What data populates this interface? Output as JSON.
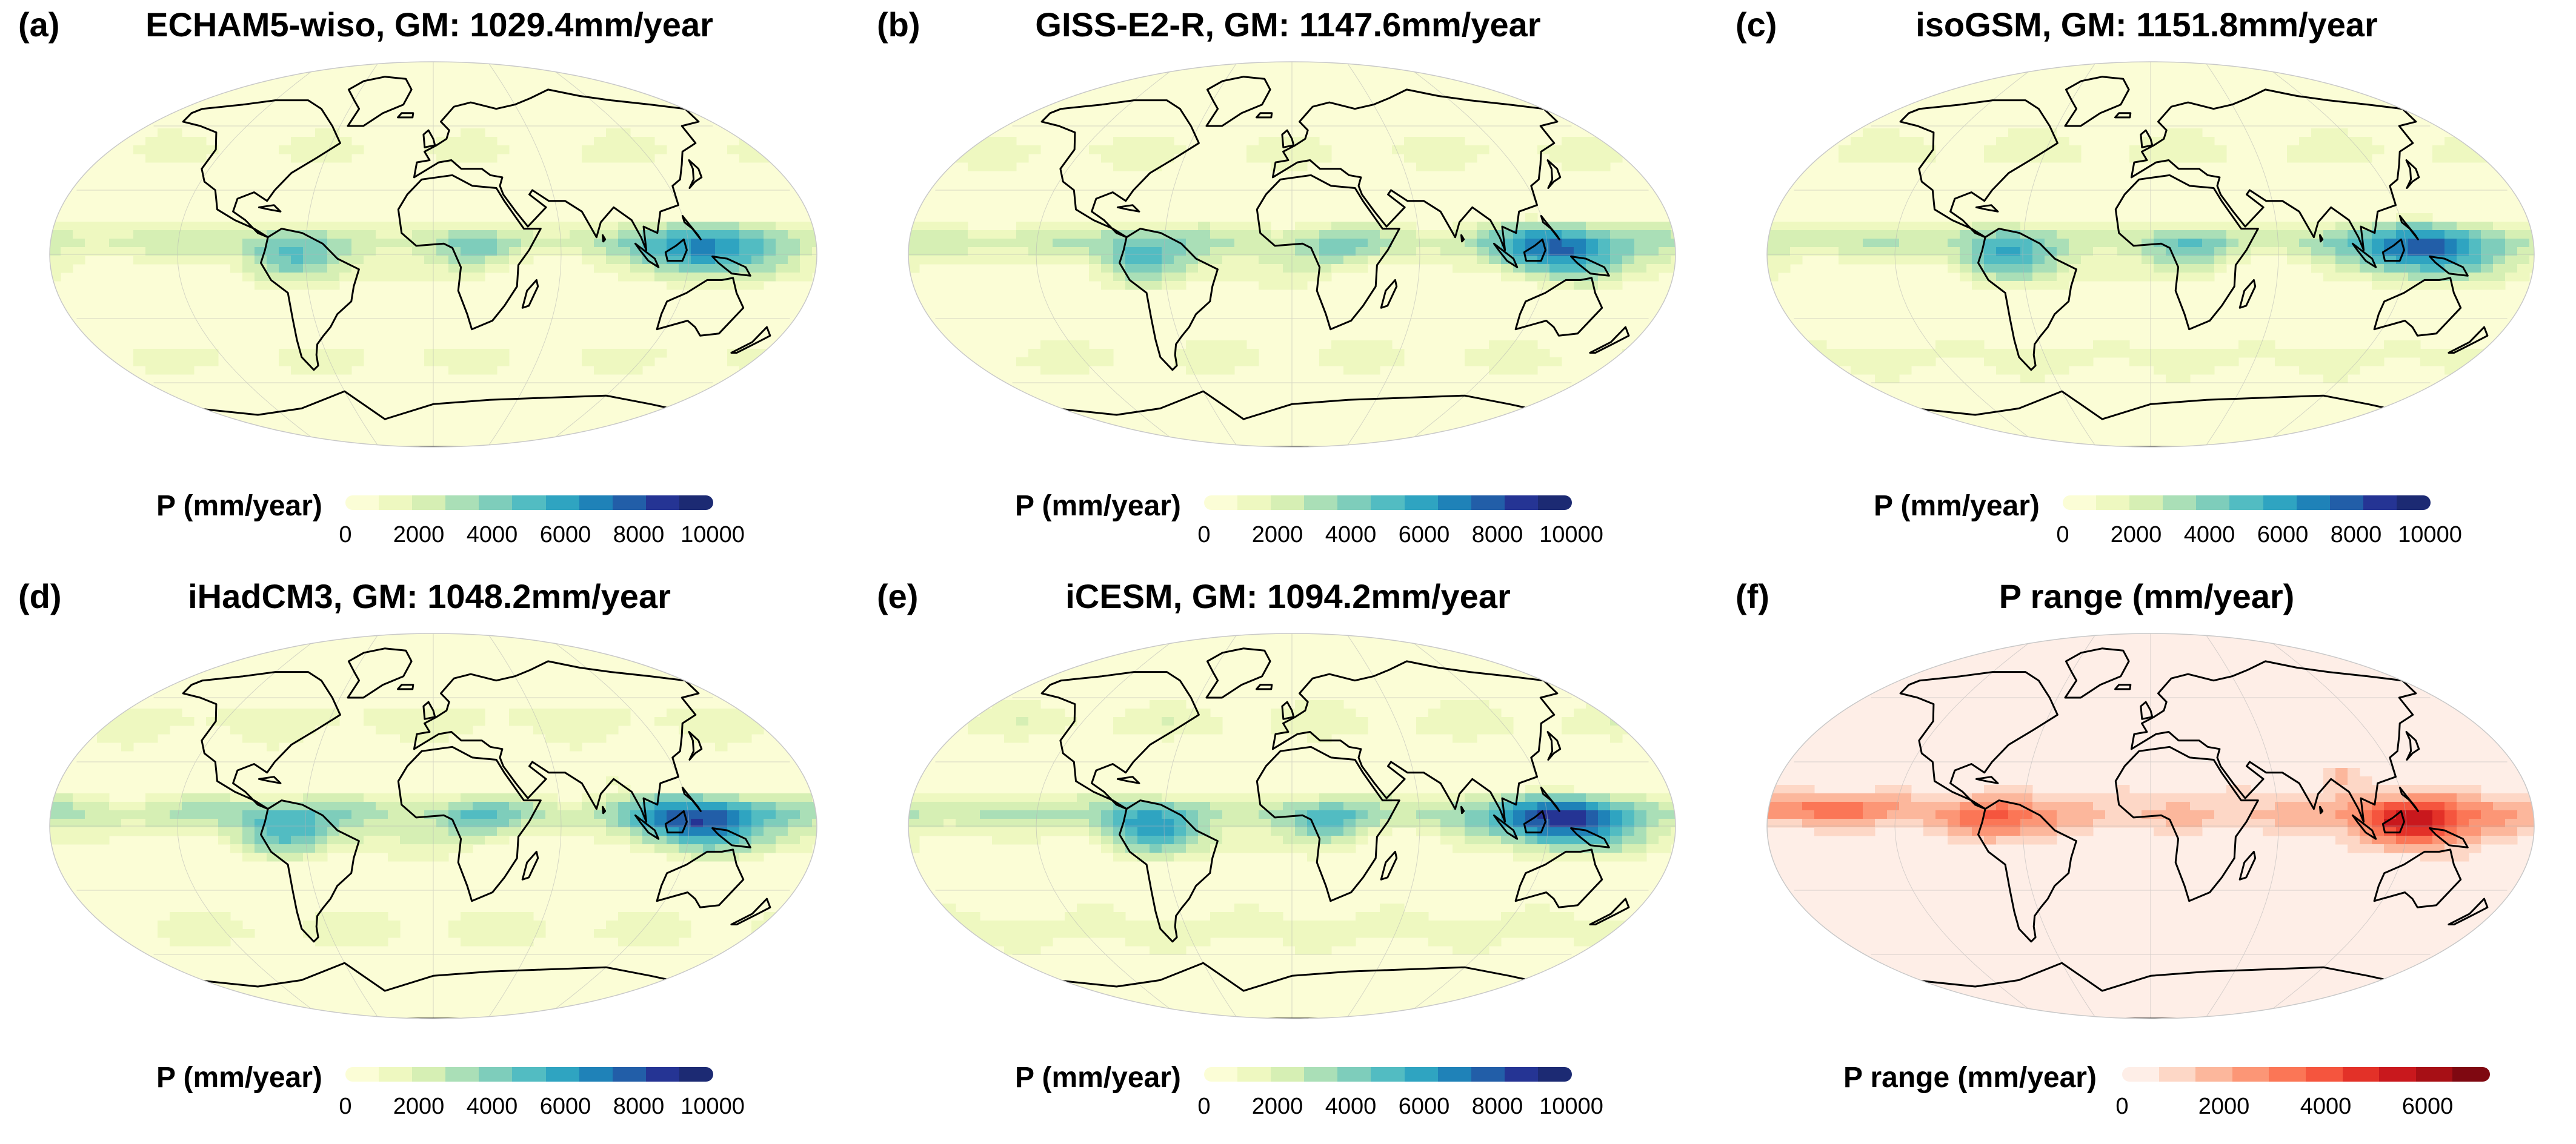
{
  "panels": [
    {
      "label": "(a)",
      "title": "ECHAM5-wiso, GM: 1029.4mm/year",
      "colorbar_label": "P (mm/year)",
      "colormap": "precip",
      "ticks": [
        "0",
        "2000",
        "4000",
        "6000",
        "8000",
        "10000"
      ]
    },
    {
      "label": "(b)",
      "title": "GISS-E2-R, GM: 1147.6mm/year",
      "colorbar_label": "P (mm/year)",
      "colormap": "precip",
      "ticks": [
        "0",
        "2000",
        "4000",
        "6000",
        "8000",
        "10000"
      ]
    },
    {
      "label": "(c)",
      "title": "isoGSM, GM: 1151.8mm/year",
      "colorbar_label": "P (mm/year)",
      "colormap": "precip",
      "ticks": [
        "0",
        "2000",
        "4000",
        "6000",
        "8000",
        "10000"
      ]
    },
    {
      "label": "(d)",
      "title": "iHadCM3, GM: 1048.2mm/year",
      "colorbar_label": "P (mm/year)",
      "colormap": "precip",
      "ticks": [
        "0",
        "2000",
        "4000",
        "6000",
        "8000",
        "10000"
      ]
    },
    {
      "label": "(e)",
      "title": "iCESM, GM: 1094.2mm/year",
      "colorbar_label": "P (mm/year)",
      "colormap": "precip",
      "ticks": [
        "0",
        "2000",
        "4000",
        "6000",
        "8000",
        "10000"
      ]
    },
    {
      "label": "(f)",
      "title": "P range (mm/year)",
      "colorbar_label": "P range (mm/year)",
      "colormap": "range",
      "ticks": [
        "0",
        "2000",
        "4000",
        "6000"
      ]
    }
  ],
  "colormaps": {
    "precip": [
      "#fbfdd6",
      "#eef8c0",
      "#d6efb4",
      "#aadfb7",
      "#7ecdbb",
      "#52bcc2",
      "#2fa4c1",
      "#1f82b8",
      "#225ea8",
      "#253494",
      "#1c2a73"
    ],
    "range": [
      "#feeee7",
      "#fdd7c6",
      "#fcb79c",
      "#fc9676",
      "#fb7656",
      "#f5553e",
      "#e33128",
      "#c9181d",
      "#a70f15",
      "#7f0811"
    ]
  }
}
